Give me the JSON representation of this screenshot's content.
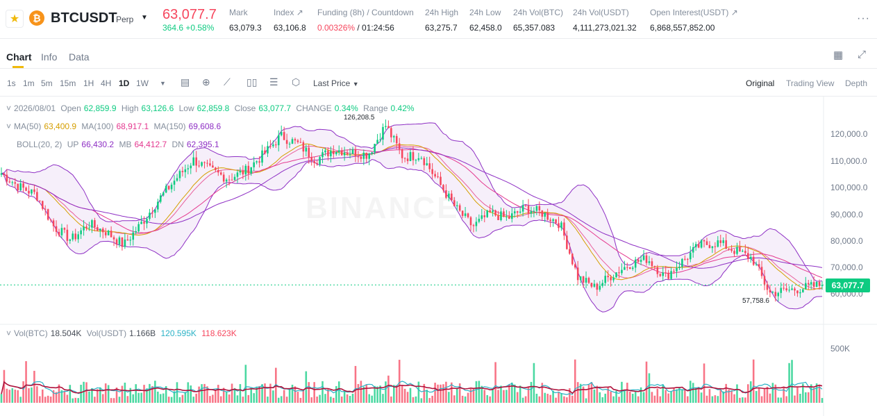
{
  "header": {
    "symbol": "BTCUSDT",
    "contract_type": "Perp",
    "coin_glyph": "₿",
    "last_price": "63,077.7",
    "change": "364.6 +0.58%",
    "stats": [
      {
        "label": "Mark",
        "value": "63,079.3"
      },
      {
        "label": "Index ↗",
        "value": "63,106.8"
      },
      {
        "label": "Funding (8h) / Countdown",
        "value_rate": "0.00326%",
        "value_countdown": " / 01:24:56"
      },
      {
        "label": "24h High",
        "value": "63,275.7"
      },
      {
        "label": "24h Low",
        "value": "62,458.0"
      },
      {
        "label": "24h Vol(BTC)",
        "value": "65,357.083"
      },
      {
        "label": "24h Vol(USDT)",
        "value": "4,111,273,021.32"
      },
      {
        "label": "Open Interest(USDT) ↗",
        "value": "6,868,557,852.00"
      }
    ]
  },
  "tabs": [
    "Chart",
    "Info",
    "Data"
  ],
  "intervals": [
    "1s",
    "1m",
    "5m",
    "15m",
    "1H",
    "4H",
    "1D",
    "1W"
  ],
  "active_interval": "1D",
  "price_type": "Last Price",
  "views": [
    "Original",
    "Trading View",
    "Depth"
  ],
  "legend": {
    "date": "2026/08/01",
    "open_label": "Open",
    "open": "62,859.9",
    "high_label": "High",
    "high": "63,126.6",
    "low_label": "Low",
    "low": "62,859.8",
    "close_label": "Close",
    "close": "63,077.7",
    "change_label": "CHANGE",
    "change": "0.34%",
    "range_label": "Range",
    "range": "0.42%",
    "ma50_label": "MA(50)",
    "ma50": "63,400.9",
    "ma100_label": "MA(100)",
    "ma100": "68,917.1",
    "ma150_label": "MA(150)",
    "ma150": "69,608.6",
    "boll_label": "BOLL(20, 2)",
    "up_label": "UP",
    "up": "66,430.2",
    "mb_label": "MB",
    "mb": "64,412.7",
    "dn_label": "DN",
    "dn": "62,395.1"
  },
  "volume_legend": {
    "vol_btc_label": "Vol(BTC)",
    "vol_btc": "18.504K",
    "vol_usdt_label": "Vol(USDT)",
    "vol_usdt": "1.166B",
    "ma1": "120.595K",
    "ma2": "118.623K"
  },
  "price_axis": [
    "120,000.0",
    "110,000.0",
    "100,000.0",
    "90,000.0",
    "80,000.0",
    "70,000.0",
    "60,000.0"
  ],
  "volume_axis": [
    "500K"
  ],
  "current_price_tag": "63,077.7",
  "high_marker": "126,208.5",
  "low_marker": "57,758.6",
  "watermark": "BINANCE",
  "colors": {
    "up": "#0ecb81",
    "down": "#f6465d",
    "ma50": "#d59e00",
    "ma100": "#e4388f",
    "ma150": "#8e2fc4",
    "boll": "#8e2fc4",
    "accent": "#f0b90b"
  },
  "chart_data": {
    "type": "candlestick",
    "price_range": [
      55000,
      130000
    ],
    "anchor_closes": [
      105000,
      100000,
      97000,
      85000,
      80000,
      86000,
      83000,
      78000,
      86000,
      95000,
      103000,
      110000,
      106000,
      103000,
      106000,
      112000,
      119000,
      116000,
      110000,
      114000,
      113000,
      112000,
      123000,
      111000,
      112000,
      102000,
      92000,
      85000,
      90000,
      88000,
      92000,
      90000,
      86000,
      66000,
      62000,
      67000,
      71000,
      73000,
      66000,
      72000,
      78000,
      79000,
      76000,
      73000,
      60000,
      61000,
      62000,
      63077
    ],
    "volume_range": [
      0,
      600000
    ]
  }
}
